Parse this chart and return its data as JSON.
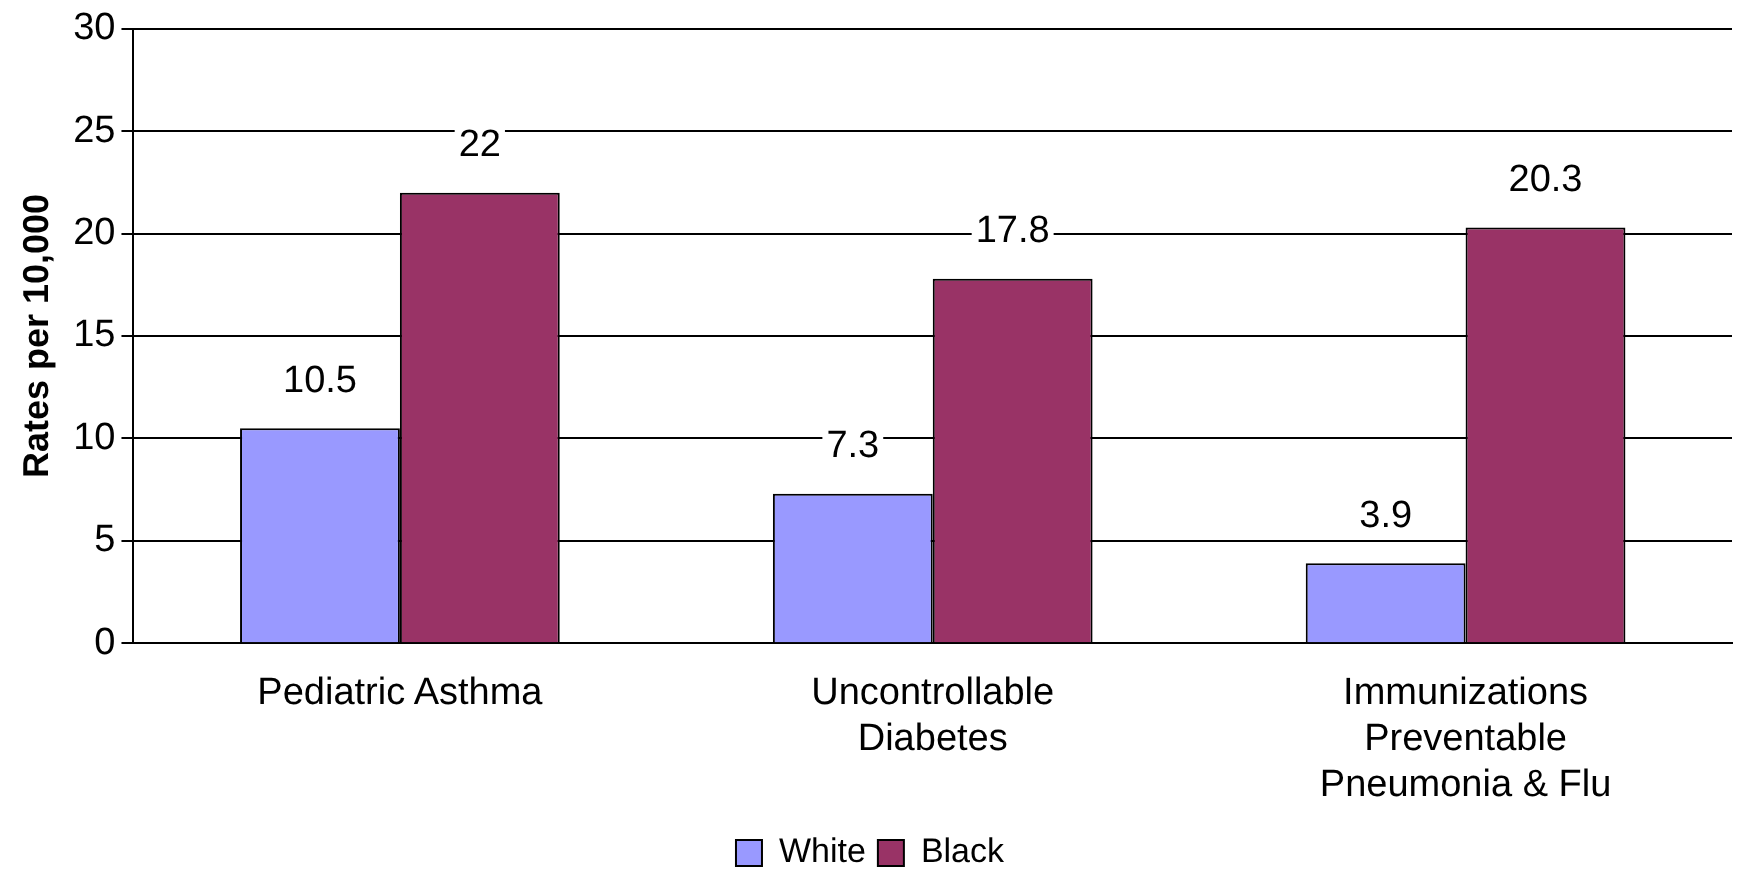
{
  "chart_data": {
    "type": "bar",
    "ylabel": "Rates per 10,000",
    "categories": [
      "Pediatric Asthma",
      "Uncontrollable Diabetes",
      "Immunizations Preventable Pneumonia & Flu"
    ],
    "series": [
      {
        "name": "White",
        "color": "#9999ff",
        "values": [
          10.5,
          7.3,
          3.9
        ]
      },
      {
        "name": "Black",
        "color": "#993366",
        "values": [
          22,
          17.8,
          20.3
        ]
      }
    ],
    "ylim": [
      0,
      30
    ],
    "yticks": [
      0,
      5,
      10,
      15,
      20,
      25,
      30
    ],
    "grid": "y",
    "legend": "bottom",
    "data_labels": true
  }
}
